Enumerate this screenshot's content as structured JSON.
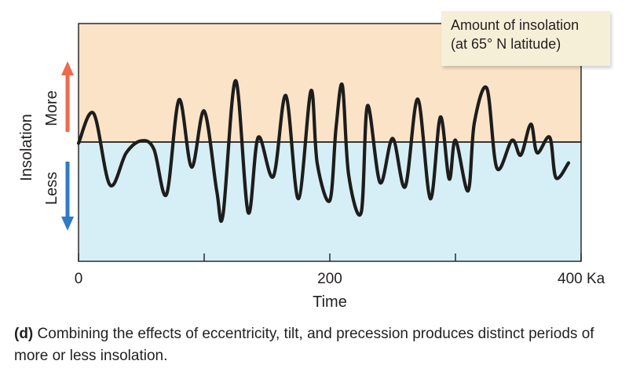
{
  "chart_data": {
    "type": "line",
    "title": "",
    "xlabel": "Time",
    "ylabel": "Insolation",
    "x_unit": "Ka",
    "xlim": [
      0,
      400
    ],
    "x_ticks": [
      0,
      100,
      200,
      300,
      400
    ],
    "x_tick_labels": [
      {
        "value": 0,
        "label": "0"
      },
      {
        "value": 200,
        "label": "200"
      },
      {
        "value": 400,
        "label": "400 Ka"
      }
    ],
    "ylim": [
      -1,
      1
    ],
    "zero_line": 0,
    "regions": [
      {
        "label": "More",
        "side": "above",
        "color": "#fbe3c8",
        "arrow_color": "#ef6a4b"
      },
      {
        "label": "Less",
        "side": "below",
        "color": "#d6eef5",
        "arrow_color": "#2f7bc4"
      }
    ],
    "legend": {
      "position": "top-right",
      "lines": [
        "Amount of insolation",
        "(at 65° N latitude)"
      ]
    },
    "grid": false,
    "line_color": "#1d1d1b",
    "series": [
      {
        "x": [
          0,
          12,
          25,
          38,
          50,
          60,
          70,
          80,
          90,
          100,
          110,
          115,
          125,
          135,
          143,
          155,
          165,
          175,
          185,
          190,
          200,
          205,
          210,
          215,
          225,
          230,
          240,
          250,
          260,
          270,
          280,
          288,
          295,
          300,
          310,
          315,
          325,
          333,
          345,
          352,
          360,
          365,
          375,
          380,
          390
        ],
        "y": [
          -0.02,
          0.48,
          -0.72,
          -0.18,
          0.02,
          -0.12,
          -0.88,
          0.71,
          -0.42,
          0.52,
          -0.82,
          -1.22,
          1.03,
          -1.18,
          0.08,
          -0.58,
          0.78,
          -0.95,
          0.86,
          -0.36,
          -0.98,
          0.25,
          0.95,
          -0.55,
          -1.18,
          0.61,
          -0.68,
          0.06,
          -0.75,
          0.72,
          -0.95,
          0.42,
          -0.62,
          0.03,
          -0.82,
          0.32,
          0.9,
          -0.44,
          0.03,
          -0.22,
          0.3,
          -0.18,
          0.08,
          -0.6,
          -0.35
        ]
      }
    ]
  },
  "caption": {
    "label": "(d)",
    "text": " Combining the effects of eccentricity, tilt, and precession produces distinct periods of more or less insolation."
  }
}
